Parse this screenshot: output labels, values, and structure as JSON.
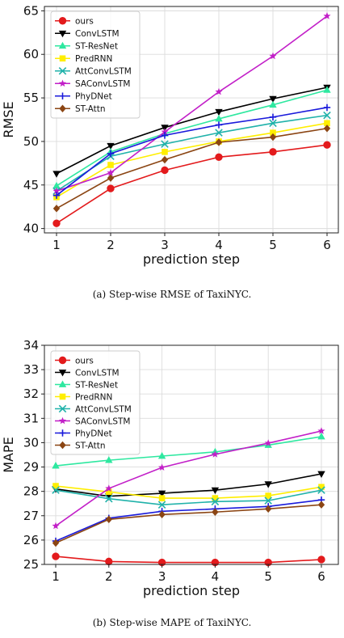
{
  "chart_data": [
    {
      "type": "line",
      "caption": "(a) Step-wise RMSE of TaxiNYC.",
      "xlabel": "prediction step",
      "ylabel": "RMSE",
      "x": [
        1,
        2,
        3,
        4,
        5,
        6
      ],
      "xticks": [
        "1",
        "2",
        "3",
        "4",
        "5",
        "6"
      ],
      "ylim": [
        39.5,
        65.5
      ],
      "yticks": [
        "40",
        "45",
        "50",
        "55",
        "60",
        "65"
      ],
      "ytick_values": [
        40,
        45,
        50,
        55,
        60,
        65
      ],
      "legend_position": "upper-left",
      "grid": true,
      "series": [
        {
          "name": "ours",
          "color": "#e31a1c",
          "marker": "circle",
          "values": [
            40.6,
            44.6,
            46.7,
            48.2,
            48.8,
            49.6
          ]
        },
        {
          "name": "ConvLSTM",
          "color": "#000000",
          "marker": "triangle-down",
          "values": [
            46.3,
            49.5,
            51.6,
            53.4,
            54.9,
            56.2
          ]
        },
        {
          "name": "ST-ResNet",
          "color": "#2ee8a0",
          "marker": "triangle-up",
          "values": [
            44.9,
            48.8,
            50.9,
            52.6,
            54.2,
            55.9
          ]
        },
        {
          "name": "PredRNN",
          "color": "#ffee00",
          "marker": "square",
          "values": [
            43.6,
            47.3,
            48.8,
            50.0,
            51.0,
            52.1
          ]
        },
        {
          "name": "AttConvLSTM",
          "color": "#20b2aa",
          "marker": "x",
          "values": [
            44.3,
            48.3,
            49.7,
            51.0,
            52.1,
            53.0
          ]
        },
        {
          "name": "SAConvLSTM",
          "color": "#c21fc8",
          "marker": "star",
          "values": [
            44.3,
            46.4,
            51.1,
            55.7,
            59.8,
            64.4
          ]
        },
        {
          "name": "PhyDNet",
          "color": "#1a1adb",
          "marker": "plus",
          "values": [
            43.8,
            48.6,
            50.7,
            51.9,
            52.8,
            53.9
          ]
        },
        {
          "name": "ST-Attn",
          "color": "#8b4513",
          "marker": "diamond",
          "values": [
            42.3,
            45.8,
            47.9,
            49.9,
            50.5,
            51.5
          ]
        }
      ]
    },
    {
      "type": "line",
      "caption": "(b) Step-wise MAPE of TaxiNYC.",
      "xlabel": "prediction step",
      "ylabel": "MAPE",
      "x": [
        1,
        2,
        3,
        4,
        5,
        6
      ],
      "xticks": [
        "1",
        "2",
        "3",
        "4",
        "5",
        "6"
      ],
      "ylim": [
        25.0,
        34.0
      ],
      "yticks": [
        "25",
        "26",
        "27",
        "28",
        "29",
        "30",
        "31",
        "32",
        "33",
        "34"
      ],
      "ytick_values": [
        25,
        26,
        27,
        28,
        29,
        30,
        31,
        32,
        33,
        34
      ],
      "legend_position": "upper-left",
      "grid": true,
      "series": [
        {
          "name": "ours",
          "color": "#e31a1c",
          "marker": "circle",
          "values": [
            25.33,
            25.12,
            25.08,
            25.08,
            25.08,
            25.2
          ]
        },
        {
          "name": "ConvLSTM",
          "color": "#000000",
          "marker": "triangle-down",
          "values": [
            28.1,
            27.8,
            27.92,
            28.05,
            28.3,
            28.72
          ]
        },
        {
          "name": "ST-ResNet",
          "color": "#2ee8a0",
          "marker": "triangle-up",
          "values": [
            29.05,
            29.28,
            29.45,
            29.62,
            29.9,
            30.25
          ]
        },
        {
          "name": "PredRNN",
          "color": "#ffee00",
          "marker": "square",
          "values": [
            28.22,
            27.98,
            27.72,
            27.72,
            27.82,
            28.18
          ]
        },
        {
          "name": "AttConvLSTM",
          "color": "#20b2aa",
          "marker": "x",
          "values": [
            28.05,
            27.7,
            27.45,
            27.58,
            27.62,
            28.05
          ]
        },
        {
          "name": "SAConvLSTM",
          "color": "#c21fc8",
          "marker": "star",
          "values": [
            26.58,
            28.12,
            28.98,
            29.52,
            29.98,
            30.48
          ]
        },
        {
          "name": "PhyDNet",
          "color": "#1a1adb",
          "marker": "plus",
          "values": [
            25.96,
            26.9,
            27.18,
            27.28,
            27.38,
            27.65
          ]
        },
        {
          "name": "ST-Attn",
          "color": "#8b4513",
          "marker": "diamond",
          "values": [
            25.88,
            26.85,
            27.05,
            27.15,
            27.28,
            27.45
          ]
        }
      ]
    }
  ]
}
